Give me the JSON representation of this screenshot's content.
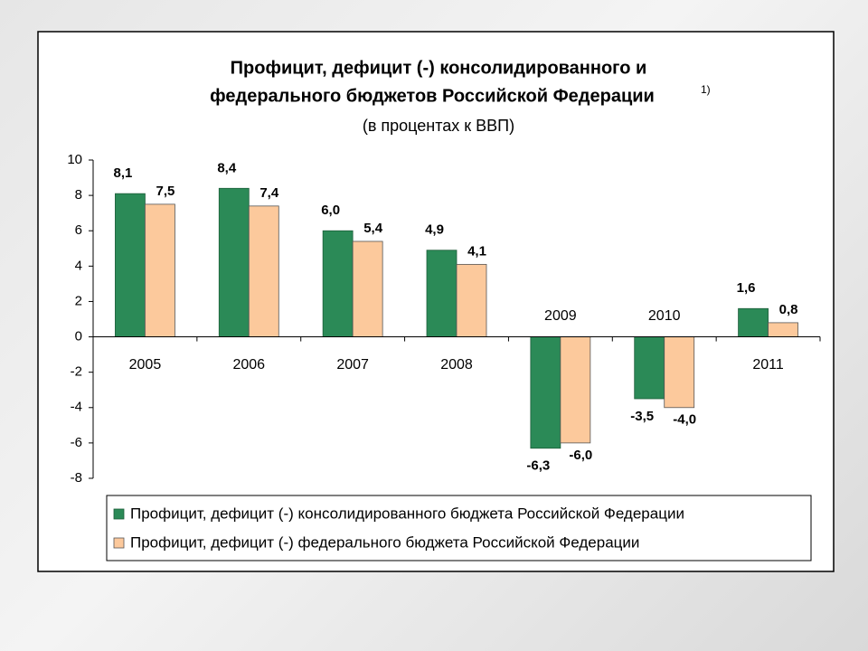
{
  "chart_data": {
    "type": "bar",
    "title": [
      "Профицит, дефицит (-) консолидированного и",
      "федерального бюджетов Российской Федерации"
    ],
    "title_note": "1)",
    "subtitle": "(в процентах к ВВП)",
    "categories": [
      "2005",
      "2006",
      "2007",
      "2008",
      "2009",
      "2010",
      "2011"
    ],
    "series": [
      {
        "name": "Профицит, дефицит (-) консолидированного бюджета Российской Федерации",
        "color": "#2b8a57",
        "values": [
          8.1,
          8.4,
          6.0,
          4.9,
          -6.3,
          -3.5,
          1.6
        ],
        "value_labels": [
          "8,1",
          "8,4",
          "6,0",
          "4,9",
          "-6,3",
          "-3,5",
          "1,6"
        ]
      },
      {
        "name": "Профицит, дефицит (-) федерального бюджета Российской Федерации",
        "color": "#fcc99c",
        "values": [
          7.5,
          7.4,
          5.4,
          4.1,
          -6.0,
          -4.0,
          0.8
        ],
        "value_labels": [
          "7,5",
          "7,4",
          "5,4",
          "4,1",
          "-6,0",
          "-4,0",
          "0,8"
        ]
      }
    ],
    "ylim": [
      -8,
      10
    ],
    "yticks": [
      -8,
      -6,
      -4,
      -2,
      0,
      2,
      4,
      6,
      8,
      10
    ]
  }
}
